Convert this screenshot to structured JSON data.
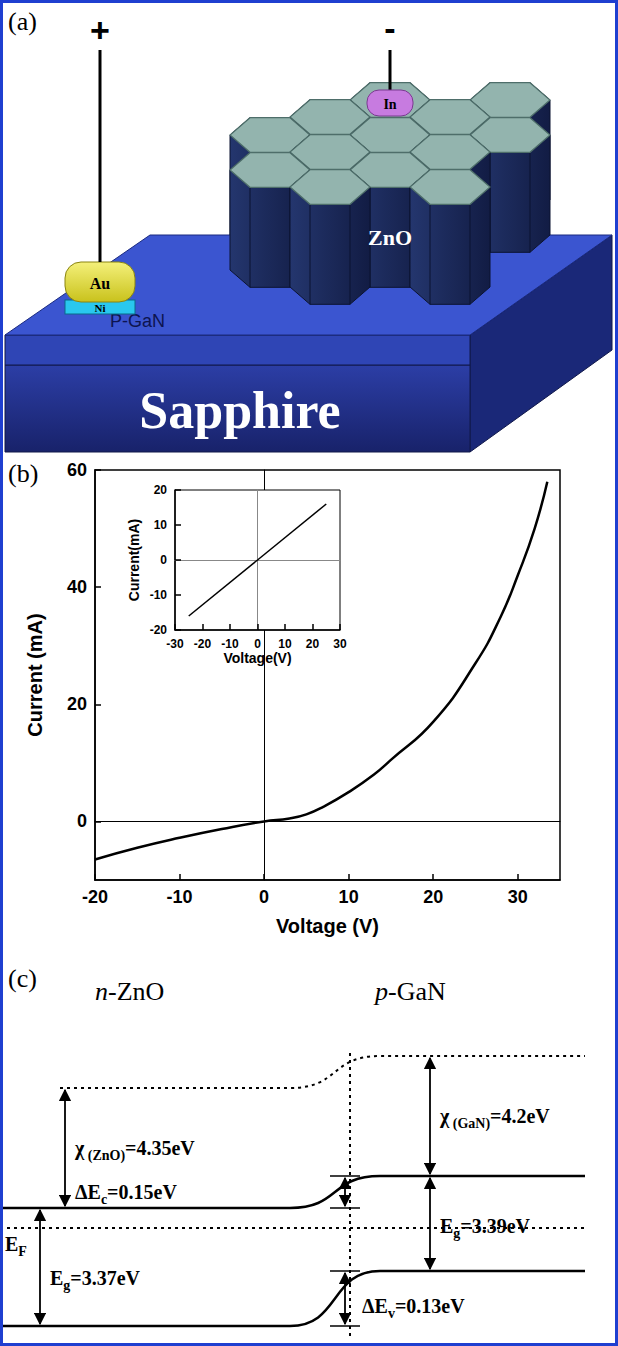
{
  "panels": {
    "a": {
      "label": "(a)",
      "texts": {
        "plus": "+",
        "minus": "-",
        "au": "Au",
        "ni": "Ni",
        "in": "In",
        "zno": "ZnO",
        "pgan": "P-GaN",
        "substrate": "Sapphire"
      }
    },
    "b": {
      "label": "(b)"
    },
    "c": {
      "label": "(c)",
      "left_title": "n-ZnO",
      "right_title": "p-GaN",
      "chi_zno": {
        "main": "χ",
        "sub": " (ZnO)",
        "rest": "=4.35eV"
      },
      "chi_gan": {
        "main": "χ",
        "sub": " (GaN)",
        "rest": "=4.2eV"
      },
      "delta_ec": {
        "main": "ΔE",
        "sub": "c",
        "rest": "=0.15eV"
      },
      "eg_gan": {
        "main": "E",
        "sub": "g",
        "rest": "=3.39eV"
      },
      "ef": {
        "main": "E",
        "sub": "F",
        "rest": ""
      },
      "eg_zno": {
        "main": "E",
        "sub": "g",
        "rest": "=3.37eV"
      },
      "delta_ev": {
        "main": "ΔE",
        "sub": "v",
        "rest": "=0.13eV"
      }
    }
  },
  "chart_data": [
    {
      "type": "line",
      "x": [
        -20,
        -15,
        -10,
        -5,
        0,
        3,
        5,
        7,
        10,
        13,
        15,
        20,
        25,
        28,
        30,
        32,
        33.5
      ],
      "series": [
        {
          "color": "#000000",
          "values": [
            -6.5,
            -4.5,
            -2.8,
            -1.3,
            0,
            0.5,
            1.2,
            2.5,
            5,
            8,
            10.5,
            17,
            27,
            35,
            42,
            50,
            58
          ]
        }
      ],
      "x_label": "Voltage (V)",
      "y_label": "Current (mA)",
      "xlim": [
        -20,
        35
      ],
      "ylim": [
        -10,
        60
      ],
      "xticks": [
        -20,
        -10,
        0,
        10,
        20,
        30
      ],
      "yticks": [
        0,
        20,
        40,
        60
      ]
    },
    {
      "type": "line",
      "x": [
        -25,
        25
      ],
      "series": [
        {
          "color": "#000000",
          "values": [
            -16,
            16
          ]
        }
      ],
      "x_label": "Voltage(V)",
      "y_label": "Current(mA)",
      "xlim": [
        -30,
        30
      ],
      "ylim": [
        -20,
        20
      ],
      "xticks": [
        -30,
        -20,
        -10,
        0,
        10,
        20,
        30
      ],
      "yticks": [
        -20,
        -10,
        0,
        10,
        20
      ]
    }
  ]
}
